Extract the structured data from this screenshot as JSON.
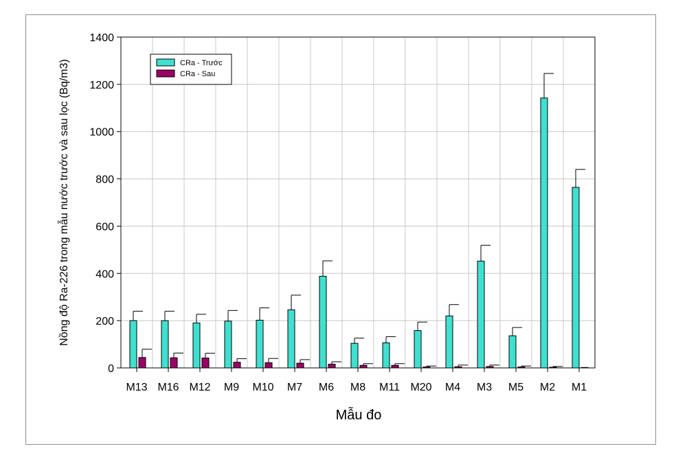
{
  "chart_data": {
    "type": "bar",
    "title": "",
    "xlabel": "Mẫu đo",
    "ylabel": "Nồng độ Ra-226 trong mẫu nước trước và sau lọc (Bq/m3)",
    "ylim": [
      0,
      1400
    ],
    "yticks": [
      "0",
      "200",
      "400",
      "600",
      "800",
      "1000",
      "1200",
      "1400"
    ],
    "grid": true,
    "legend_position": "top-left",
    "categories": [
      "M13",
      "M16",
      "M12",
      "M9",
      "M10",
      "M7",
      "M6",
      "M8",
      "M11",
      "M20",
      "M4",
      "M3",
      "M5",
      "M2",
      "M1"
    ],
    "series": [
      {
        "name": "CRa - Trước",
        "color": "#40e0d0",
        "values": [
          200,
          200,
          190,
          198,
          202,
          246,
          388,
          104,
          106,
          158,
          220,
          452,
          136,
          1142,
          764
        ],
        "errors": [
          40,
          40,
          37,
          45,
          52,
          62,
          65,
          22,
          26,
          36,
          48,
          67,
          35,
          104,
          76
        ]
      },
      {
        "name": "CRa - Sau",
        "color": "#990066",
        "values": [
          44,
          43,
          42,
          24,
          22,
          20,
          16,
          11,
          11,
          4,
          5,
          6,
          4,
          3,
          2
        ],
        "errors": [
          35,
          20,
          20,
          15,
          18,
          15,
          10,
          7,
          7,
          4,
          7,
          6,
          4,
          3,
          0
        ]
      }
    ]
  }
}
